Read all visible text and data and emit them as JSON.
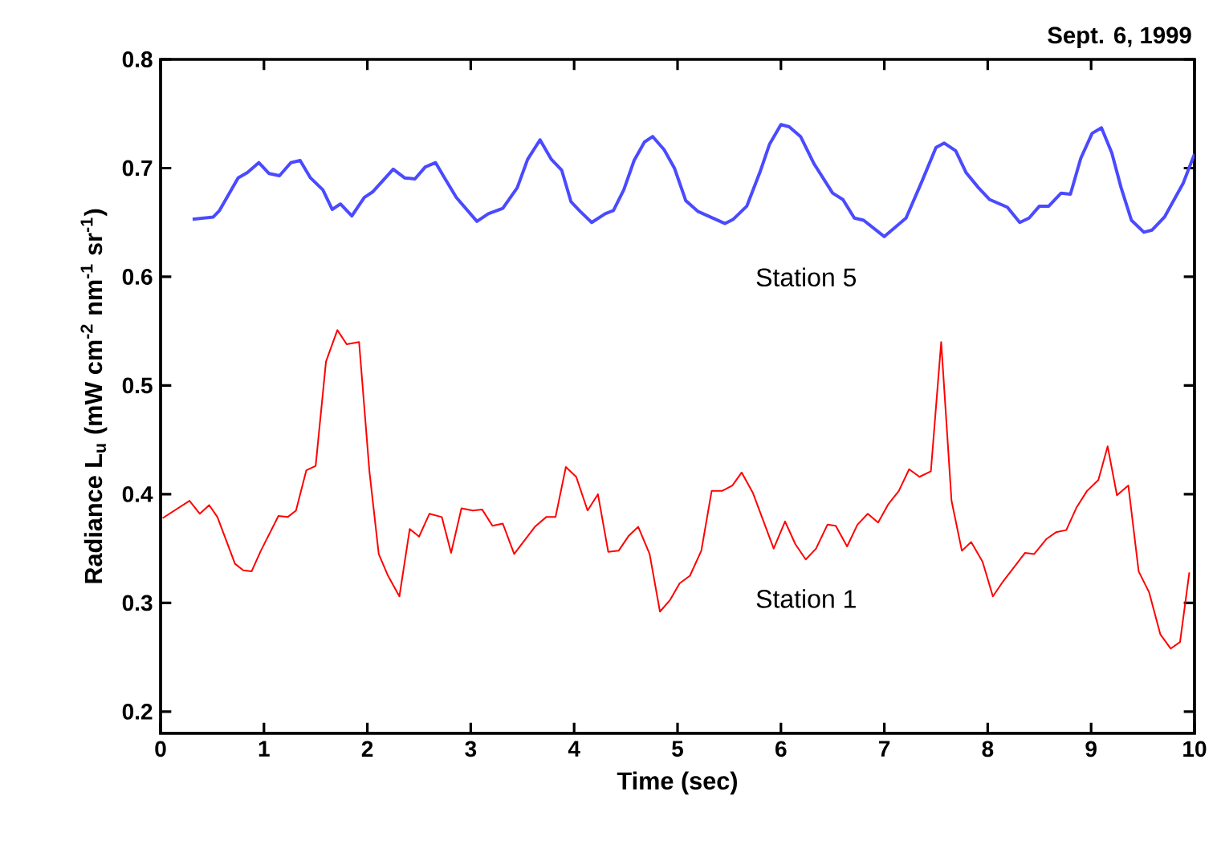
{
  "chart_data": {
    "type": "line",
    "title": "Sept. 6, 1999",
    "xlabel": "Time (sec)",
    "ylabel": "Radiance L$_{u}$ (mW cm$^{-2}$ nm$^{-1}$ sr$^{-1}$)",
    "xlim": [
      0,
      10
    ],
    "ylim": [
      0.18,
      0.8
    ],
    "xticks": [
      0,
      1,
      2,
      3,
      4,
      5,
      6,
      7,
      8,
      9,
      10
    ],
    "yticks": [
      0.2,
      0.3,
      0.4,
      0.5,
      0.6,
      0.7,
      0.8
    ],
    "grid": false,
    "legend": false,
    "marker": "none",
    "line_style": "solid",
    "series": [
      {
        "name": "Station 5",
        "color": "#4a4aff",
        "x": [
          0.31,
          0.51,
          0.57,
          0.75,
          0.84,
          0.95,
          1.05,
          1.15,
          1.26,
          1.35,
          1.45,
          1.57,
          1.66,
          1.74,
          1.85,
          1.97,
          2.05,
          2.25,
          2.36,
          2.46,
          2.56,
          2.66,
          2.74,
          2.86,
          3.06,
          3.17,
          3.31,
          3.45,
          3.55,
          3.67,
          3.78,
          3.88,
          3.97,
          4.06,
          4.17,
          4.3,
          4.38,
          4.48,
          4.58,
          4.68,
          4.76,
          4.87,
          4.97,
          5.08,
          5.2,
          5.46,
          5.54,
          5.67,
          5.8,
          5.89,
          6.0,
          6.08,
          6.19,
          6.32,
          6.5,
          6.6,
          6.71,
          6.8,
          7.0,
          7.21,
          7.36,
          7.5,
          7.58,
          7.69,
          7.79,
          7.91,
          8.02,
          8.19,
          8.31,
          8.4,
          8.5,
          8.59,
          8.71,
          8.8,
          8.9,
          9.01,
          9.1,
          9.2,
          9.29,
          9.39,
          9.51,
          9.59,
          9.71,
          9.89,
          10.0
        ],
        "values": [
          0.653,
          0.655,
          0.661,
          0.691,
          0.696,
          0.705,
          0.695,
          0.693,
          0.705,
          0.707,
          0.691,
          0.68,
          0.662,
          0.667,
          0.656,
          0.673,
          0.678,
          0.699,
          0.691,
          0.69,
          0.701,
          0.705,
          0.692,
          0.673,
          0.651,
          0.658,
          0.663,
          0.682,
          0.708,
          0.726,
          0.708,
          0.698,
          0.669,
          0.66,
          0.65,
          0.658,
          0.661,
          0.68,
          0.707,
          0.724,
          0.729,
          0.717,
          0.7,
          0.67,
          0.66,
          0.649,
          0.653,
          0.665,
          0.697,
          0.722,
          0.74,
          0.738,
          0.729,
          0.704,
          0.677,
          0.671,
          0.654,
          0.652,
          0.637,
          0.654,
          0.687,
          0.719,
          0.723,
          0.716,
          0.696,
          0.682,
          0.671,
          0.664,
          0.65,
          0.654,
          0.665,
          0.665,
          0.677,
          0.676,
          0.709,
          0.732,
          0.737,
          0.714,
          0.682,
          0.652,
          0.641,
          0.643,
          0.655,
          0.686,
          0.713
        ]
      },
      {
        "name": "Station 1",
        "color": "#ff0000",
        "x": [
          0.02,
          0.28,
          0.38,
          0.47,
          0.55,
          0.72,
          0.8,
          0.88,
          0.97,
          1.14,
          1.23,
          1.31,
          1.41,
          1.5,
          1.6,
          1.71,
          1.8,
          1.92,
          2.02,
          2.11,
          2.2,
          2.31,
          2.41,
          2.5,
          2.6,
          2.72,
          2.81,
          2.91,
          3.02,
          3.11,
          3.21,
          3.31,
          3.42,
          3.62,
          3.73,
          3.82,
          3.92,
          4.02,
          4.13,
          4.23,
          4.33,
          4.43,
          4.53,
          4.62,
          4.73,
          4.83,
          4.93,
          5.02,
          5.12,
          5.23,
          5.33,
          5.43,
          5.53,
          5.62,
          5.73,
          5.93,
          6.04,
          6.14,
          6.24,
          6.34,
          6.45,
          6.53,
          6.64,
          6.74,
          6.84,
          6.94,
          7.04,
          7.14,
          7.24,
          7.34,
          7.45,
          7.55,
          7.65,
          7.75,
          7.84,
          7.95,
          8.05,
          8.15,
          8.36,
          8.45,
          8.57,
          8.66,
          8.76,
          8.86,
          8.96,
          9.07,
          9.16,
          9.25,
          9.36,
          9.46,
          9.56,
          9.67,
          9.77,
          9.86,
          9.95
        ],
        "values": [
          0.378,
          0.394,
          0.382,
          0.39,
          0.379,
          0.336,
          0.33,
          0.329,
          0.348,
          0.38,
          0.379,
          0.385,
          0.422,
          0.426,
          0.522,
          0.551,
          0.538,
          0.54,
          0.421,
          0.345,
          0.325,
          0.306,
          0.368,
          0.361,
          0.382,
          0.379,
          0.346,
          0.387,
          0.385,
          0.386,
          0.371,
          0.373,
          0.345,
          0.37,
          0.379,
          0.379,
          0.425,
          0.416,
          0.385,
          0.4,
          0.347,
          0.348,
          0.362,
          0.37,
          0.345,
          0.292,
          0.303,
          0.318,
          0.325,
          0.348,
          0.403,
          0.403,
          0.408,
          0.42,
          0.401,
          0.35,
          0.375,
          0.354,
          0.34,
          0.35,
          0.372,
          0.371,
          0.352,
          0.372,
          0.382,
          0.374,
          0.391,
          0.403,
          0.423,
          0.416,
          0.421,
          0.54,
          0.394,
          0.348,
          0.356,
          0.338,
          0.306,
          0.32,
          0.346,
          0.345,
          0.359,
          0.365,
          0.367,
          0.388,
          0.403,
          0.413,
          0.444,
          0.399,
          0.408,
          0.329,
          0.31,
          0.271,
          0.258,
          0.264,
          0.328
        ]
      }
    ]
  }
}
